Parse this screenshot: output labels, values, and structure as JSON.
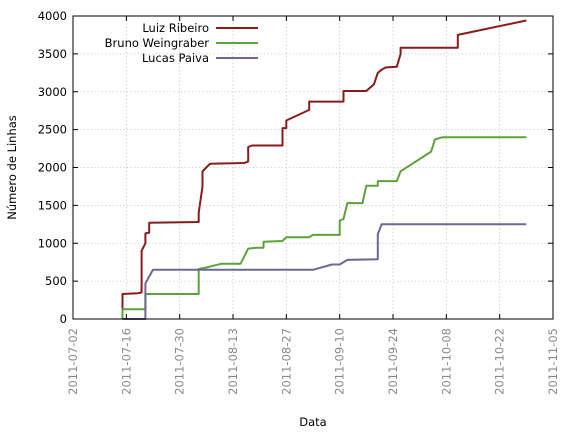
{
  "chart_data": {
    "type": "line",
    "title": "",
    "xlabel": "Data",
    "ylabel": "Número de Linhas",
    "xlim": [
      "2011-07-02",
      "2011-11-05"
    ],
    "ylim": [
      0,
      4000
    ],
    "x_ticks": [
      "2011-07-02",
      "2011-07-16",
      "2011-07-30",
      "2011-08-13",
      "2011-08-27",
      "2011-09-10",
      "2011-09-24",
      "2011-10-08",
      "2011-10-22",
      "2011-11-05"
    ],
    "y_ticks": [
      0,
      500,
      1000,
      1500,
      2000,
      2500,
      3000,
      3500,
      4000
    ],
    "grid": true,
    "legend_position": "top-left",
    "series": [
      {
        "name": "Luiz Ribeiro",
        "color": "#8b1a1a",
        "points": [
          [
            "2011-07-15",
            100
          ],
          [
            "2011-07-15",
            330
          ],
          [
            "2011-07-19",
            340
          ],
          [
            "2011-07-20",
            350
          ],
          [
            "2011-07-20",
            600
          ],
          [
            "2011-07-20",
            900
          ],
          [
            "2011-07-21",
            1000
          ],
          [
            "2011-07-21",
            1130
          ],
          [
            "2011-07-22",
            1140
          ],
          [
            "2011-07-22",
            1270
          ],
          [
            "2011-08-04",
            1280
          ],
          [
            "2011-08-04",
            1400
          ],
          [
            "2011-08-05",
            1750
          ],
          [
            "2011-08-05",
            1950
          ],
          [
            "2011-08-06",
            2000
          ],
          [
            "2011-08-07",
            2050
          ],
          [
            "2011-08-16",
            2060
          ],
          [
            "2011-08-17",
            2080
          ],
          [
            "2011-08-17",
            2270
          ],
          [
            "2011-08-18",
            2290
          ],
          [
            "2011-08-25",
            2290
          ],
          [
            "2011-08-26",
            2290
          ],
          [
            "2011-08-26",
            2520
          ],
          [
            "2011-08-27",
            2520
          ],
          [
            "2011-08-27",
            2620
          ],
          [
            "2011-09-02",
            2760
          ],
          [
            "2011-09-02",
            2870
          ],
          [
            "2011-09-11",
            2870
          ],
          [
            "2011-09-11",
            3010
          ],
          [
            "2011-09-17",
            3010
          ],
          [
            "2011-09-19",
            3100
          ],
          [
            "2011-09-20",
            3250
          ],
          [
            "2011-09-21",
            3290
          ],
          [
            "2011-09-22",
            3320
          ],
          [
            "2011-09-25",
            3330
          ],
          [
            "2011-09-26",
            3500
          ],
          [
            "2011-09-26",
            3580
          ],
          [
            "2011-10-08",
            3580
          ],
          [
            "2011-10-11",
            3580
          ],
          [
            "2011-10-11",
            3750
          ],
          [
            "2011-10-29",
            3940
          ]
        ]
      },
      {
        "name": "Bruno Weingraber",
        "color": "#5ea13a",
        "points": [
          [
            "2011-07-15",
            0
          ],
          [
            "2011-07-15",
            130
          ],
          [
            "2011-07-21",
            130
          ],
          [
            "2011-07-21",
            330
          ],
          [
            "2011-08-04",
            330
          ],
          [
            "2011-08-04",
            660
          ],
          [
            "2011-08-06",
            680
          ],
          [
            "2011-08-10",
            730
          ],
          [
            "2011-08-15",
            730
          ],
          [
            "2011-08-17",
            930
          ],
          [
            "2011-08-19",
            940
          ],
          [
            "2011-08-21",
            940
          ],
          [
            "2011-08-21",
            1020
          ],
          [
            "2011-08-26",
            1030
          ],
          [
            "2011-08-27",
            1080
          ],
          [
            "2011-09-02",
            1080
          ],
          [
            "2011-09-03",
            1110
          ],
          [
            "2011-09-10",
            1110
          ],
          [
            "2011-09-10",
            1300
          ],
          [
            "2011-09-11",
            1320
          ],
          [
            "2011-09-12",
            1530
          ],
          [
            "2011-09-16",
            1530
          ],
          [
            "2011-09-17",
            1760
          ],
          [
            "2011-09-20",
            1760
          ],
          [
            "2011-09-20",
            1820
          ],
          [
            "2011-09-25",
            1820
          ],
          [
            "2011-09-26",
            1950
          ],
          [
            "2011-10-04",
            2210
          ],
          [
            "2011-10-05",
            2370
          ],
          [
            "2011-10-07",
            2400
          ],
          [
            "2011-10-29",
            2400
          ]
        ]
      },
      {
        "name": "Lucas Paiva",
        "color": "#6b6894",
        "points": [
          [
            "2011-07-15",
            0
          ],
          [
            "2011-07-21",
            0
          ],
          [
            "2011-07-21",
            470
          ],
          [
            "2011-07-23",
            650
          ],
          [
            "2011-09-03",
            650
          ],
          [
            "2011-09-08",
            720
          ],
          [
            "2011-09-10",
            720
          ],
          [
            "2011-09-12",
            780
          ],
          [
            "2011-09-20",
            790
          ],
          [
            "2011-09-20",
            1120
          ],
          [
            "2011-09-21",
            1250
          ],
          [
            "2011-10-29",
            1250
          ]
        ]
      }
    ]
  }
}
